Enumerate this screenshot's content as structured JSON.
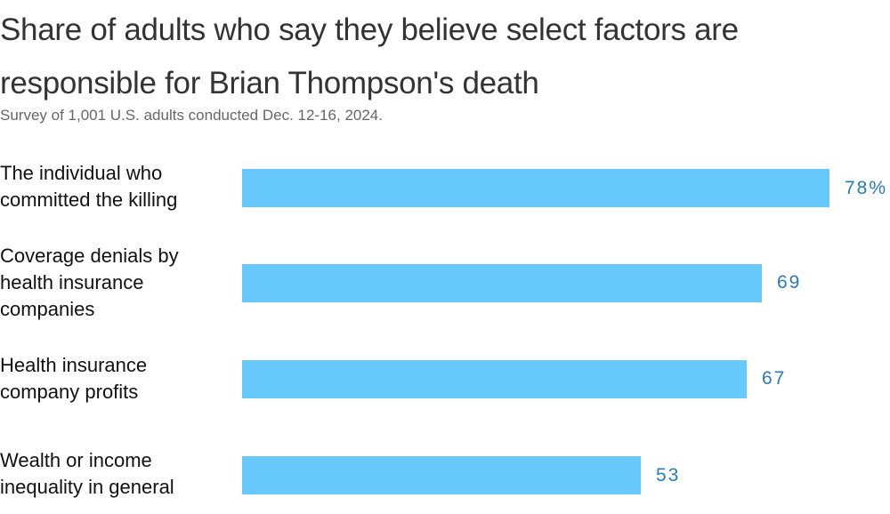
{
  "title": "Share of adults who say they believe select factors are responsible for Brian Thompson's death",
  "subtitle": "Survey of 1,001 U.S. adults conducted Dec. 12-16, 2024.",
  "colors": {
    "bar": "#66c8fb",
    "value": "#2a7ac0"
  },
  "rows": [
    {
      "label": "The individual who committed the killing",
      "value": 78,
      "display": "78%"
    },
    {
      "label": "Coverage denials by health insurance companies",
      "value": 69,
      "display": "69"
    },
    {
      "label": "Health insurance company profits",
      "value": 67,
      "display": "67"
    },
    {
      "label": "Wealth or income inequality in general",
      "value": 53,
      "display": "53"
    }
  ],
  "chart_data": {
    "type": "bar",
    "orientation": "horizontal",
    "title": "Share of adults who say they believe select factors are responsible for Brian Thompson's death",
    "subtitle": "Survey of 1,001 U.S. adults conducted Dec. 12-16, 2024.",
    "categories": [
      "The individual who committed the killing",
      "Coverage denials by health insurance companies",
      "Health insurance company profits",
      "Wealth or income inequality in general"
    ],
    "values": [
      78,
      69,
      67,
      53
    ],
    "unit": "%",
    "xlabel": "",
    "ylabel": "",
    "grid": false
  }
}
